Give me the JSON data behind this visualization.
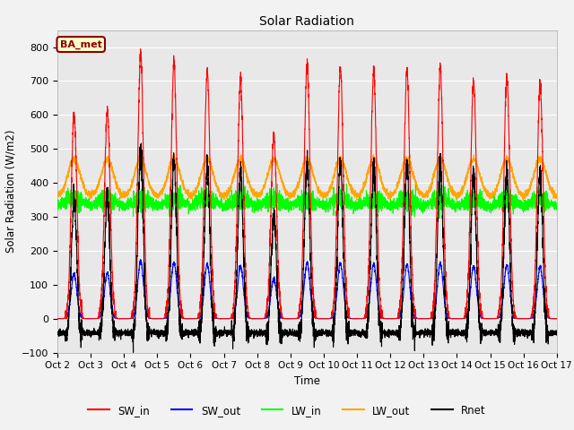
{
  "title": "Solar Radiation",
  "xlabel": "Time",
  "ylabel": "Solar Radiation (W/m2)",
  "ylim": [
    -100,
    850
  ],
  "yticks": [
    -100,
    0,
    100,
    200,
    300,
    400,
    500,
    600,
    700,
    800
  ],
  "n_days": 15,
  "colors": {
    "SW_in": "#FF0000",
    "SW_out": "#0000FF",
    "LW_in": "#00FF00",
    "LW_out": "#FFA500",
    "Rnet": "#000000"
  },
  "inset_label": "BA_met",
  "plot_bg_color": "#E8E8E8",
  "fig_bg_color": "#F2F2F2",
  "linewidth": 0.8,
  "sw_in_peaks": [
    600,
    610,
    775,
    755,
    730,
    705,
    540,
    750,
    740,
    730,
    730,
    735,
    700,
    715,
    690
  ]
}
